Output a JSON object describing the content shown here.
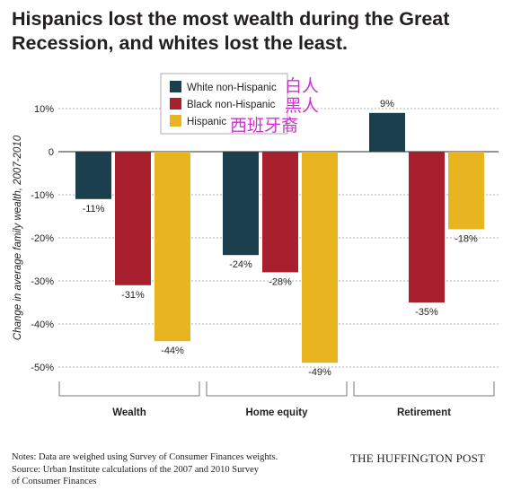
{
  "title": "Hispanics lost the most wealth during the Great Recession, and whites lost the least.",
  "chart_data": {
    "type": "bar",
    "ylabel": "Change in average family wealth, 2007-2010",
    "ylim": [
      -50,
      10
    ],
    "yticks": [
      10,
      0,
      -10,
      -20,
      -30,
      -40,
      -50
    ],
    "ytick_labels": [
      "10%",
      "0",
      "-10%",
      "-20%",
      "-30%",
      "-40%",
      "-50%"
    ],
    "grid": true,
    "legend_position": "top-center",
    "categories": [
      "Wealth",
      "Home equity",
      "Retirement"
    ],
    "series": [
      {
        "name": "White non-Hispanic",
        "color": "#1c3f4e",
        "values": [
          -11,
          -24,
          9
        ],
        "labels": [
          "-11%",
          "-24%",
          "9%"
        ]
      },
      {
        "name": "Black non-Hispanic",
        "color": "#a81f2e",
        "values": [
          -31,
          -28,
          -35
        ],
        "labels": [
          "-31%",
          "-28%",
          "-35%"
        ]
      },
      {
        "name": "Hispanic",
        "color": "#e8b41f",
        "values": [
          -44,
          -49,
          -18
        ],
        "labels": [
          "-44%",
          "-49%",
          "-18%"
        ]
      }
    ]
  },
  "annotations": [
    "白人",
    "黑人",
    "西班牙裔"
  ],
  "notes": [
    "Notes: Data are weighed using Survey of Consumer Finances weights.",
    "Source: Urban Institute calculations of the 2007 and 2010 Survey",
    "of Consumer Finances"
  ],
  "brand": "THE HUFFINGTON POST"
}
